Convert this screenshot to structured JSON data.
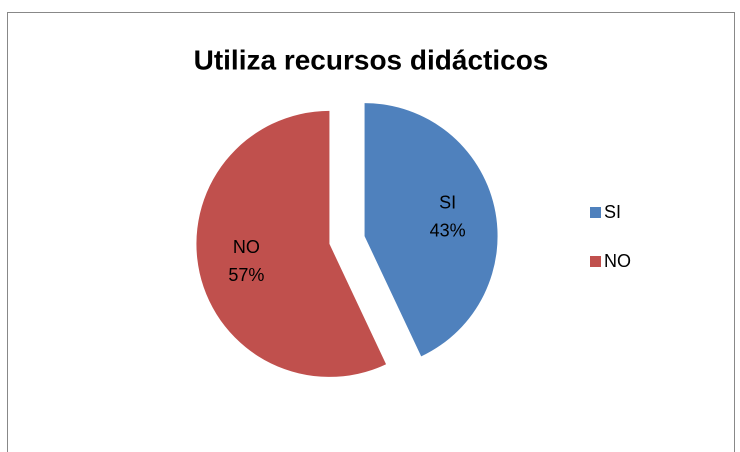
{
  "chart_data": {
    "type": "pie",
    "title": "Utiliza recursos didácticos",
    "categories": [
      "SI",
      "NO"
    ],
    "values": [
      43,
      57
    ],
    "value_labels": [
      "43%",
      "57%"
    ],
    "colors": [
      "#4f81bd",
      "#c0504d"
    ],
    "legend": "right"
  }
}
